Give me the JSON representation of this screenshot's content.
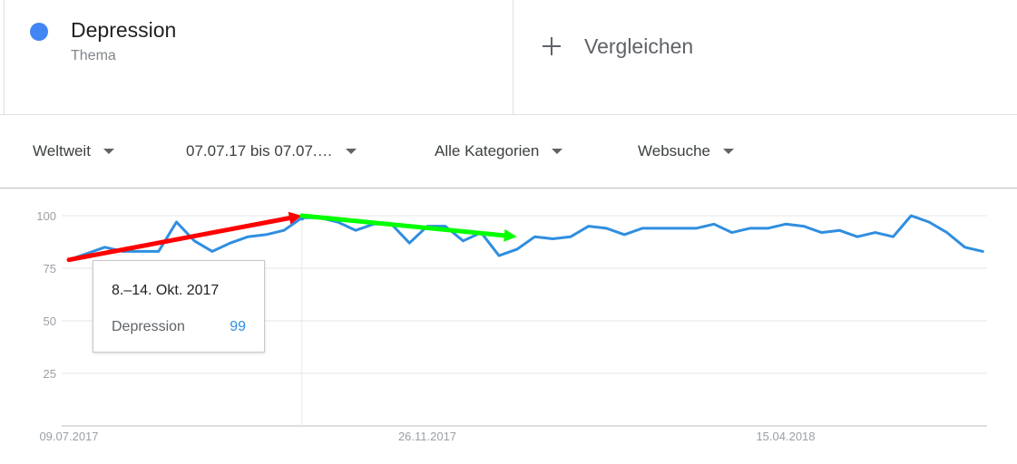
{
  "term": {
    "name": "Depression",
    "type": "Thema",
    "color": "#4285f4"
  },
  "compare": {
    "icon": "plus-icon",
    "label": "Vergleichen"
  },
  "filters": {
    "region": "Weltweit",
    "date_range": "07.07.17 bis 07.07.…",
    "category": "Alle Kategorien",
    "search_type": "Websuche"
  },
  "tooltip": {
    "date": "8.–14. Okt. 2017",
    "series": "Depression",
    "value": "99"
  },
  "chart_data": {
    "type": "line",
    "series": [
      {
        "name": "Depression",
        "color": "#2f8ee0",
        "x": [
          "2017-07-09",
          "2017-07-16",
          "2017-07-23",
          "2017-07-30",
          "2017-08-06",
          "2017-08-13",
          "2017-08-20",
          "2017-08-27",
          "2017-09-03",
          "2017-09-10",
          "2017-09-17",
          "2017-09-24",
          "2017-10-01",
          "2017-10-08",
          "2017-10-15",
          "2017-10-22",
          "2017-10-29",
          "2017-11-05",
          "2017-11-12",
          "2017-11-19",
          "2017-11-26",
          "2017-12-03",
          "2017-12-10",
          "2017-12-17",
          "2017-12-24",
          "2017-12-31",
          "2018-01-07",
          "2018-01-14",
          "2018-01-21",
          "2018-01-28",
          "2018-02-04",
          "2018-02-11",
          "2018-02-18",
          "2018-02-25",
          "2018-03-04",
          "2018-03-11",
          "2018-03-18",
          "2018-03-25",
          "2018-04-01",
          "2018-04-08",
          "2018-04-15",
          "2018-04-22",
          "2018-04-29",
          "2018-05-06",
          "2018-05-13",
          "2018-05-20",
          "2018-05-27",
          "2018-06-03",
          "2018-06-10",
          "2018-06-17",
          "2018-06-24",
          "2018-07-01"
        ],
        "values": [
          79,
          82,
          85,
          83,
          83,
          83,
          97,
          88,
          83,
          87,
          90,
          91,
          93,
          99,
          99,
          97,
          93,
          96,
          96,
          87,
          95,
          95,
          88,
          92,
          81,
          84,
          90,
          89,
          90,
          95,
          94,
          91,
          94,
          94,
          94,
          94,
          96,
          92,
          94,
          94,
          96,
          95,
          92,
          93,
          90,
          92,
          90,
          100,
          97,
          92,
          85,
          83
        ]
      }
    ],
    "x_ticks": [
      "09.07.2017",
      "26.11.2017",
      "15.04.2018"
    ],
    "y_ticks": [
      100,
      75,
      50,
      25
    ],
    "ylim": [
      0,
      100
    ],
    "grid": true,
    "hover_x": "2017-10-08",
    "annotations": [
      {
        "type": "arrow",
        "color": "#ff0000",
        "from": [
          "2017-07-09",
          79
        ],
        "to": [
          "2017-10-08",
          100
        ]
      },
      {
        "type": "arrow",
        "color": "#00ff00",
        "from": [
          "2017-10-08",
          100
        ],
        "to": [
          "2017-12-31",
          90
        ]
      }
    ]
  }
}
